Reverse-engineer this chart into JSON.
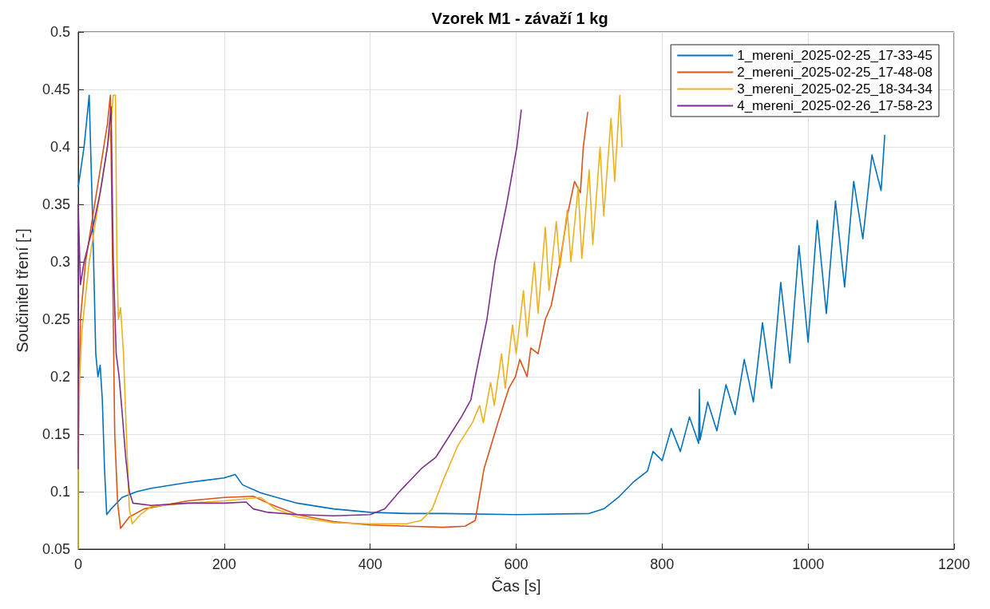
{
  "chart_data": {
    "type": "line",
    "title": "Vzorek M1 - závaží 1 kg",
    "xlabel": "Čas [s]",
    "ylabel": "Součinitel tření [-]",
    "xlim": [
      0,
      1200
    ],
    "xticks": [
      0,
      200,
      400,
      600,
      800,
      1000,
      1200
    ],
    "ylim": [
      0.05,
      0.5
    ],
    "yticks": [
      0.05,
      0.1,
      0.15,
      0.2,
      0.25,
      0.3,
      0.35,
      0.4,
      0.45,
      0.5
    ],
    "grid": true,
    "legend": "top right",
    "line_style": "solid",
    "series": [
      {
        "name": "1_mereni_2025-02-25_17-33-45",
        "color": "#0072bd",
        "x": [
          0,
          8,
          15,
          20,
          24,
          27,
          30,
          33,
          36,
          39,
          45,
          60,
          80,
          100,
          150,
          200,
          215,
          225,
          250,
          300,
          350,
          400,
          450,
          500,
          600,
          700,
          720,
          740,
          760,
          780,
          787.5,
          800,
          812.5,
          825,
          837.5,
          850,
          851,
          852,
          862.5,
          875,
          887.5,
          900,
          912.5,
          925,
          937.5,
          950,
          962.5,
          975,
          987.5,
          1000,
          1012.5,
          1025,
          1037.5,
          1050,
          1062.5,
          1075,
          1087.5,
          1100,
          1105
        ],
        "values": [
          0.365,
          0.4,
          0.445,
          0.33,
          0.22,
          0.2,
          0.21,
          0.18,
          0.12,
          0.08,
          0.085,
          0.095,
          0.1,
          0.103,
          0.108,
          0.112,
          0.115,
          0.106,
          0.099,
          0.09,
          0.085,
          0.082,
          0.081,
          0.081,
          0.08,
          0.081,
          0.085,
          0.095,
          0.108,
          0.118,
          0.135,
          0.127,
          0.155,
          0.135,
          0.165,
          0.142,
          0.189,
          0.145,
          0.178,
          0.153,
          0.193,
          0.167,
          0.215,
          0.178,
          0.247,
          0.19,
          0.282,
          0.212,
          0.314,
          0.23,
          0.336,
          0.255,
          0.353,
          0.278,
          0.37,
          0.32,
          0.393,
          0.362,
          0.41
        ]
      },
      {
        "name": "2_mereni_2025-02-25_17-48-08",
        "color": "#d95319",
        "x": [
          0,
          3,
          10,
          20,
          30,
          40,
          44,
          47,
          50,
          54,
          58,
          70,
          90,
          150,
          200,
          240,
          260,
          300,
          350,
          400,
          450,
          500,
          530,
          544,
          556,
          575,
          590,
          599,
          605,
          615,
          620,
          630,
          640,
          648,
          660,
          670,
          680,
          688,
          692,
          698
        ],
        "values": [
          0.15,
          0.25,
          0.3,
          0.34,
          0.38,
          0.42,
          0.445,
          0.3,
          0.15,
          0.09,
          0.068,
          0.078,
          0.085,
          0.092,
          0.095,
          0.096,
          0.09,
          0.08,
          0.074,
          0.071,
          0.07,
          0.069,
          0.07,
          0.075,
          0.12,
          0.16,
          0.19,
          0.2,
          0.215,
          0.2,
          0.225,
          0.22,
          0.25,
          0.262,
          0.3,
          0.34,
          0.37,
          0.36,
          0.4,
          0.43
        ]
      },
      {
        "name": "3_mereni_2025-02-25_18-34-34",
        "color": "#edb120",
        "x": [
          0,
          0,
          2,
          5,
          15,
          30,
          45,
          48,
          51,
          53,
          55,
          58,
          62,
          66,
          70,
          74,
          85,
          100,
          150,
          200,
          250,
          270,
          300,
          350,
          400,
          450,
          470,
          485,
          500,
          520,
          540,
          550,
          555,
          565,
          570,
          580,
          585,
          595,
          600,
          610,
          615,
          625,
          630,
          640,
          645,
          655,
          660,
          670,
          675,
          685,
          690,
          700,
          705,
          715,
          720,
          730,
          735,
          742,
          745
        ],
        "values": [
          0.05,
          0.115,
          0.2,
          0.24,
          0.3,
          0.36,
          0.42,
          0.445,
          0.445,
          0.3,
          0.25,
          0.26,
          0.22,
          0.15,
          0.085,
          0.072,
          0.08,
          0.087,
          0.09,
          0.092,
          0.095,
          0.085,
          0.078,
          0.073,
          0.072,
          0.072,
          0.075,
          0.085,
          0.11,
          0.14,
          0.16,
          0.175,
          0.16,
          0.195,
          0.175,
          0.22,
          0.19,
          0.245,
          0.22,
          0.275,
          0.235,
          0.3,
          0.255,
          0.33,
          0.275,
          0.335,
          0.295,
          0.345,
          0.3,
          0.365,
          0.303,
          0.38,
          0.315,
          0.4,
          0.34,
          0.425,
          0.37,
          0.445,
          0.4
        ]
      },
      {
        "name": "4_mereni_2025-02-26_17-58-23",
        "color": "#7e2f8e",
        "x": [
          0,
          0,
          3,
          8,
          12,
          20,
          30,
          40,
          45,
          48,
          52,
          56,
          60,
          65,
          70,
          75,
          100,
          150,
          200,
          230,
          240,
          260,
          300,
          350,
          400,
          420,
          440,
          470,
          490,
          510,
          525,
          538,
          544,
          560,
          571,
          587,
          601,
          607
        ],
        "values": [
          0.12,
          0.35,
          0.28,
          0.3,
          0.31,
          0.33,
          0.36,
          0.4,
          0.435,
          0.3,
          0.22,
          0.2,
          0.17,
          0.13,
          0.1,
          0.09,
          0.088,
          0.09,
          0.09,
          0.091,
          0.085,
          0.082,
          0.08,
          0.079,
          0.08,
          0.085,
          0.1,
          0.12,
          0.13,
          0.15,
          0.165,
          0.18,
          0.2,
          0.25,
          0.3,
          0.35,
          0.4,
          0.432
        ]
      }
    ]
  }
}
